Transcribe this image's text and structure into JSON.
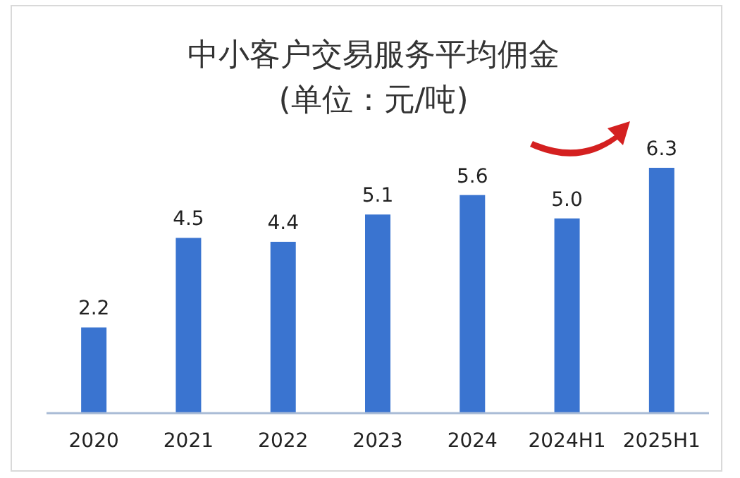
{
  "chart_data": {
    "type": "bar",
    "title": "中小客户交易服务平均佣金",
    "subtitle": "(单位：元/吨)",
    "categories": [
      "2020",
      "2021",
      "2022",
      "2023",
      "2024",
      "2024H1",
      "2025H1"
    ],
    "values": [
      2.2,
      4.5,
      4.4,
      5.1,
      5.6,
      5.0,
      6.3
    ],
    "color": "#3a74d0",
    "value_labels": [
      "2.2",
      "4.5",
      "4.4",
      "5.1",
      "5.6",
      "5.0",
      "6.3"
    ]
  }
}
